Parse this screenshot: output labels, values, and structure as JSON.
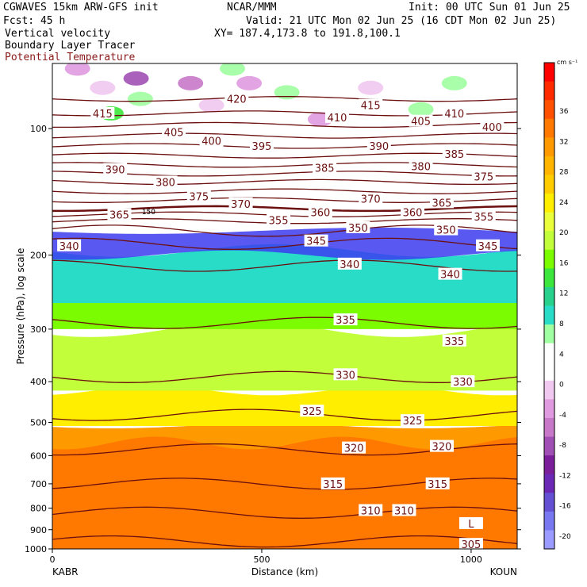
{
  "header": {
    "model": "CGWAVES 15km ARW-GFS init",
    "center": "NCAR/MMM",
    "init": "Init: 00 UTC Sun 01 Jun 25",
    "fcst": "Fcst:   45 h",
    "valid": "Valid: 21 UTC Mon 02 Jun 25 (16 CDT Mon 02 Jun 25)",
    "xy": "XY= 187.4,173.8 to 191.8,100.1",
    "fields": [
      "Vertical velocity",
      "Boundary Layer Tracer",
      "Potential Temperature"
    ]
  },
  "chart_data": {
    "type": "heatmap",
    "title": "",
    "xlabel": "Distance (km)",
    "ylabel": "Pressure (hPa), log scale",
    "x_range": [
      0,
      1110
    ],
    "y_range": [
      1000,
      70
    ],
    "y_scale": "log",
    "x_ticks": [
      0,
      500,
      1000
    ],
    "y_ticks": [
      100,
      200,
      300,
      400,
      500,
      600,
      700,
      800,
      900,
      1000
    ],
    "x_endpoints": [
      "KABR",
      "KOUN"
    ],
    "colorbar": {
      "unit": "cm s⁻¹",
      "labels": [
        36,
        32,
        28,
        24,
        20,
        16,
        12,
        8,
        4,
        0,
        -4,
        -8,
        -12,
        -16,
        -20
      ],
      "colors": [
        "#ff0000",
        "#ff2a00",
        "#ff4f00",
        "#ff7800",
        "#ff9900",
        "#ffb400",
        "#ffcc00",
        "#ffee00",
        "#eaff3a",
        "#c2ff3a",
        "#7cfc00",
        "#3ce63c",
        "#28d28c",
        "#28dcc8",
        "#a0ffa0",
        "#ffffff",
        "#ffffff",
        "#f0c8f0",
        "#e09ae0",
        "#c878c8",
        "#a050b4",
        "#7a1e9a",
        "#6a28b4",
        "#6450d2",
        "#7878f0",
        "#9a9aff"
      ]
    },
    "theta_contours": [
      {
        "value": 420,
        "p": 85
      },
      {
        "value": 415,
        "p": 92
      },
      {
        "value": 410,
        "p": 98
      },
      {
        "value": 405,
        "p": 104
      },
      {
        "value": 400,
        "p": 110
      },
      {
        "value": 395,
        "p": 116
      },
      {
        "value": 390,
        "p": 122
      },
      {
        "value": 385,
        "p": 128
      },
      {
        "value": 380,
        "p": 134
      },
      {
        "value": 375,
        "p": 141
      },
      {
        "value": 370,
        "p": 148
      },
      {
        "value": 365,
        "p": 155
      },
      {
        "value": 360,
        "p": 160
      },
      {
        "value": 355,
        "p": 166
      },
      {
        "value": 350,
        "p": 175
      },
      {
        "value": 345,
        "p": 188
      },
      {
        "value": 340,
        "p": 212
      },
      {
        "value": 335,
        "p": 290
      },
      {
        "value": 330,
        "p": 390
      },
      {
        "value": 325,
        "p": 480
      },
      {
        "value": 320,
        "p": 580
      },
      {
        "value": 315,
        "p": 700
      },
      {
        "value": 310,
        "p": 820
      },
      {
        "value": 305,
        "p": 960
      }
    ],
    "tracer_label": "150",
    "theta_labels": [
      {
        "text": "420",
        "x": 440,
        "p": 85
      },
      {
        "text": "415",
        "x": 120,
        "p": 92
      },
      {
        "text": "415",
        "x": 760,
        "p": 88
      },
      {
        "text": "410",
        "x": 680,
        "p": 94
      },
      {
        "text": "410",
        "x": 960,
        "p": 92
      },
      {
        "text": "405",
        "x": 290,
        "p": 102
      },
      {
        "text": "405",
        "x": 880,
        "p": 96
      },
      {
        "text": "400",
        "x": 380,
        "p": 107
      },
      {
        "text": "400",
        "x": 1050,
        "p": 99
      },
      {
        "text": "395",
        "x": 500,
        "p": 110
      },
      {
        "text": "390",
        "x": 150,
        "p": 125
      },
      {
        "text": "390",
        "x": 780,
        "p": 110
      },
      {
        "text": "385",
        "x": 650,
        "p": 124
      },
      {
        "text": "385",
        "x": 960,
        "p": 115
      },
      {
        "text": "380",
        "x": 270,
        "p": 134
      },
      {
        "text": "380",
        "x": 880,
        "p": 123
      },
      {
        "text": "375",
        "x": 350,
        "p": 145
      },
      {
        "text": "375",
        "x": 1030,
        "p": 130
      },
      {
        "text": "370",
        "x": 450,
        "p": 151
      },
      {
        "text": "370",
        "x": 760,
        "p": 147
      },
      {
        "text": "365",
        "x": 160,
        "p": 160
      },
      {
        "text": "365",
        "x": 930,
        "p": 150
      },
      {
        "text": "360",
        "x": 640,
        "p": 158
      },
      {
        "text": "360",
        "x": 860,
        "p": 158
      },
      {
        "text": "355",
        "x": 540,
        "p": 165
      },
      {
        "text": "355",
        "x": 1030,
        "p": 162
      },
      {
        "text": "350",
        "x": 730,
        "p": 172
      },
      {
        "text": "350",
        "x": 940,
        "p": 174
      },
      {
        "text": "345",
        "x": 630,
        "p": 185
      },
      {
        "text": "345",
        "x": 1040,
        "p": 190
      },
      {
        "text": "340",
        "x": 40,
        "p": 190
      },
      {
        "text": "340",
        "x": 710,
        "p": 210
      },
      {
        "text": "340",
        "x": 950,
        "p": 222
      },
      {
        "text": "335",
        "x": 700,
        "p": 285
      },
      {
        "text": "335",
        "x": 960,
        "p": 320
      },
      {
        "text": "330",
        "x": 700,
        "p": 385
      },
      {
        "text": "330",
        "x": 980,
        "p": 400
      },
      {
        "text": "325",
        "x": 620,
        "p": 470
      },
      {
        "text": "325",
        "x": 860,
        "p": 495
      },
      {
        "text": "320",
        "x": 720,
        "p": 575
      },
      {
        "text": "320",
        "x": 930,
        "p": 570
      },
      {
        "text": "315",
        "x": 670,
        "p": 700
      },
      {
        "text": "315",
        "x": 920,
        "p": 700
      },
      {
        "text": "310",
        "x": 760,
        "p": 810
      },
      {
        "text": "310",
        "x": 840,
        "p": 810
      },
      {
        "text": "L",
        "x": 1000,
        "p": 870
      },
      {
        "text": "305",
        "x": 1000,
        "p": 975
      }
    ]
  }
}
